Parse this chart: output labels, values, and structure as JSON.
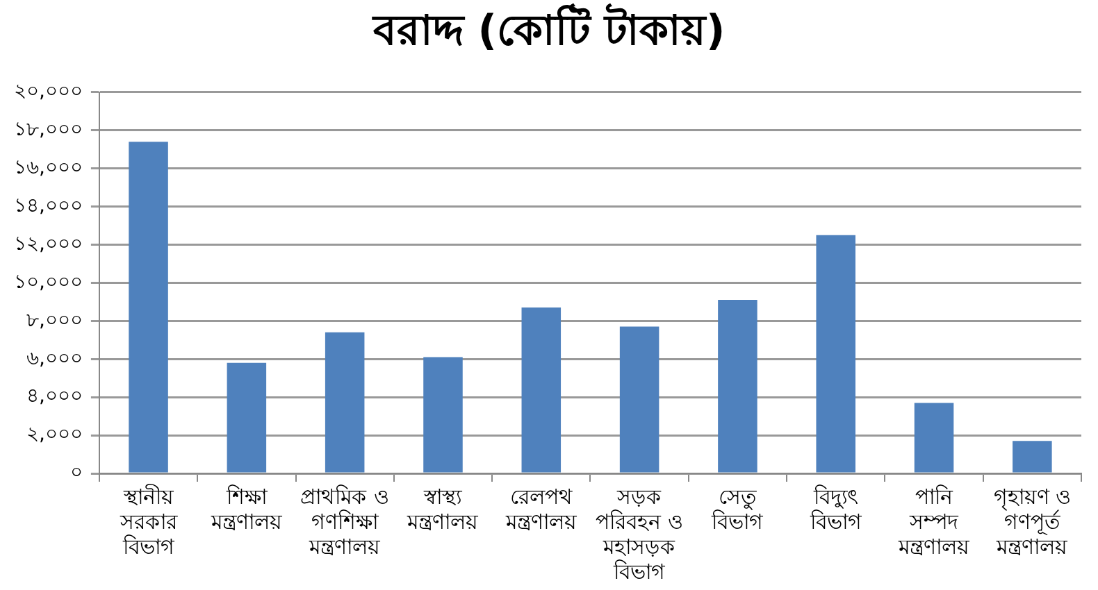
{
  "chart_data": {
    "type": "bar",
    "title": "বরাদ্দ (কোটি টাকায়)",
    "categories": [
      "স্থানীয় সরকার বিভাগ",
      "শিক্ষা মন্ত্রণালয়",
      "প্রাথমিক ও গণশিক্ষা মন্ত্রণালয়",
      "স্বাস্থ্য মন্ত্রণালয়",
      "রেলপথ মন্ত্রণালয়",
      "সড়ক পরিবহন ও মহাসড়ক বিভাগ",
      "সেতু বিভাগ",
      "বিদ্যুৎ বিভাগ",
      "পানি সম্পদ মন্ত্রণালয়",
      "গৃহায়ণ ও গণপূর্ত মন্ত্রণালয়"
    ],
    "values": [
      17400,
      5800,
      7400,
      6100,
      8700,
      7700,
      9100,
      12500,
      3700,
      1700
    ],
    "color": "#4f81bd",
    "ylim": [
      0,
      20000
    ],
    "yticks": [
      {
        "value": 0,
        "label": "০"
      },
      {
        "value": 2000,
        "label": "২,০০০"
      },
      {
        "value": 4000,
        "label": "৪,০০০"
      },
      {
        "value": 6000,
        "label": "৬,০০০"
      },
      {
        "value": 8000,
        "label": "৮,০০০"
      },
      {
        "value": 10000,
        "label": "১০,০০০"
      },
      {
        "value": 12000,
        "label": "১২,০০০"
      },
      {
        "value": 14000,
        "label": "১৪,০০০"
      },
      {
        "value": 16000,
        "label": "১৬,০০০"
      },
      {
        "value": 18000,
        "label": "১৮,০০০"
      },
      {
        "value": 20000,
        "label": "২০,০০০"
      }
    ],
    "grid": "y",
    "legend": false
  }
}
